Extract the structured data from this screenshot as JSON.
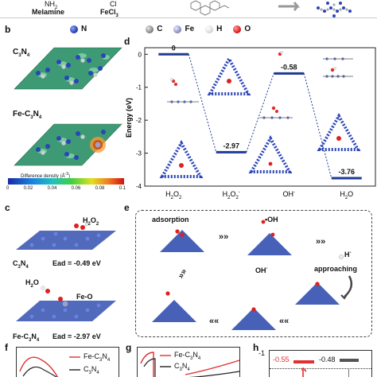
{
  "top": {
    "chem_left_top": "NH",
    "chem_left_top_sub": "2",
    "chem_left": "Melamine",
    "chem_mid_top": "Cl",
    "chem_mid": "FeCl",
    "chem_mid_sub": "3"
  },
  "legend": {
    "items": [
      {
        "symbol": "N",
        "color": "#2a45b8"
      },
      {
        "symbol": "C",
        "color": "#9a9a9a"
      },
      {
        "symbol": "Fe",
        "color": "#9aa0c8"
      },
      {
        "symbol": "H",
        "color": "#eeeeee"
      },
      {
        "symbol": "O",
        "color": "#e02020"
      }
    ]
  },
  "panels": {
    "b": "b",
    "c": "c",
    "d": "d",
    "e": "e",
    "f": "f",
    "g": "g",
    "h": "h"
  },
  "panel_b": {
    "label_top": "C",
    "label_top_sub": "3",
    "label_top_tail": "N",
    "label_top_sub2": "4",
    "label_bottom": "Fe-C",
    "label_bottom_sub": "3",
    "label_bottom_tail": "N",
    "label_bottom_sub2": "4",
    "colorbar_title": "Difference density (Å",
    "colorbar_title_sup": "-3",
    "colorbar_title_end": ")",
    "colorbar_ticks": [
      "0",
      "0.02",
      "0.04",
      "0.06",
      "0.08",
      "0.1"
    ]
  },
  "panel_c": {
    "h2o2_a": "H",
    "h2o2_sub1": "2",
    "h2o2_b": "O",
    "h2o2_sub2": "2",
    "c3n4_label": "C",
    "c3n4_sub": "3",
    "c3n4_tail": "N",
    "c3n4_sub2": "4",
    "ead_top": "Ead = -0.49 eV",
    "h2o_a": "H",
    "h2o_sub": "2",
    "h2o_b": "O",
    "feo": "Fe-O",
    "fec3n4": "Fe-C",
    "fec3n4_sub": "3",
    "fec3n4_tail": "N",
    "fec3n4_sub2": "4",
    "ead_bottom": "Ead = -2.97 eV"
  },
  "chart_data": {
    "type": "line",
    "ylabel": "Energy (eV)",
    "ylim": [
      -4,
      0.2
    ],
    "yticks": [
      "0",
      "-1",
      "-2",
      "-3",
      "-4"
    ],
    "categories": [
      "H2O2",
      "H2O2-",
      "OH-",
      "H2O"
    ],
    "category_labels": [
      {
        "a": "H",
        "s1": "2",
        "b": "O",
        "s2": "2",
        "sup": ""
      },
      {
        "a": "H",
        "s1": "2",
        "b": "O",
        "s2": "2",
        "sup": "-"
      },
      {
        "a": "OH",
        "s1": "",
        "b": "",
        "s2": "",
        "sup": "-"
      },
      {
        "a": "H",
        "s1": "2",
        "b": "O",
        "s2": "",
        "sup": ""
      }
    ],
    "values": [
      0,
      -2.97,
      -0.58,
      -3.76
    ],
    "value_labels": [
      "0",
      "-2.97",
      "-0.58",
      "-3.76"
    ],
    "label_colors": [
      "#111111",
      "#111111",
      "#111111",
      "#111111"
    ],
    "bar_color": "#1f3a93"
  },
  "panel_e": {
    "adsorption": "adsorption",
    "oh_radical": "•OH",
    "oh_minus": "OH",
    "oh_minus_sup": "-",
    "h_minus": "H",
    "h_minus_sup": "-",
    "approaching": "approaching"
  },
  "panel_f": {
    "legend": [
      {
        "name": "Fe-C",
        "sub": "3",
        "tail": "N",
        "sub2": "4",
        "color": "#e03030"
      },
      {
        "name": "C",
        "sub": "3",
        "tail": "N",
        "sub2": "4",
        "color": "#222222"
      }
    ]
  },
  "panel_g": {
    "legend": [
      {
        "name": "Fe-C",
        "sub": "3",
        "tail": "N",
        "sub2": "4",
        "color": "#e03030"
      },
      {
        "name": "C",
        "sub": "3",
        "tail": "N",
        "sub2": "4",
        "color": "#222222"
      }
    ]
  },
  "panel_h": {
    "ytick": "-1",
    "values": [
      "-0.55",
      "-0.48"
    ],
    "colors": [
      "#e03030",
      "#555555"
    ]
  }
}
